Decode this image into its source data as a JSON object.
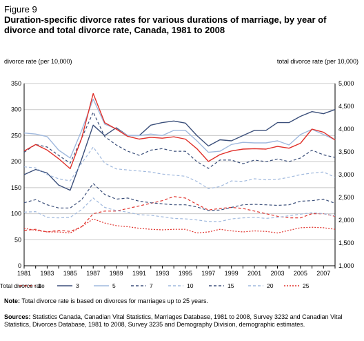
{
  "figure_label": "Figure 9",
  "title": "Duration-specific divorce rates for various durations of marriage, by year of divorce and total divorce rate, Canada, 1981 to 2008",
  "left_axis_title": "divorce rate (per 10,000)",
  "right_axis_title": "total divorce rate (per 10,000)",
  "note_label": "Note:",
  "note_text": "Total divorce rate is based on divorces for marriages up to 25 years.",
  "sources_label": "Sources:",
  "sources_text": "Statistics Canada, Canadian Vital Statistics, Marriages Database, 1981 to 2008, Survey 3232 and Canadian Vital Statistics, Divorces Database, 1981 to 2008, Survey 3235 and Demography Division, demographic estimates.",
  "chart_data": {
    "type": "line",
    "x": [
      1981,
      1982,
      1983,
      1984,
      1985,
      1986,
      1987,
      1988,
      1989,
      1990,
      1991,
      1992,
      1993,
      1994,
      1995,
      1996,
      1997,
      1998,
      1999,
      2000,
      2001,
      2002,
      2003,
      2004,
      2005,
      2006,
      2007,
      2008
    ],
    "x_ticks": [
      "1981",
      "1983",
      "1985",
      "1987",
      "1989",
      "1991",
      "1993",
      "1995",
      "1997",
      "1999",
      "2001",
      "2003",
      "2005",
      "2007"
    ],
    "y_left_lim": [
      0,
      350
    ],
    "y_left_ticks": [
      "0",
      "50",
      "100",
      "150",
      "200",
      "250",
      "300",
      "350"
    ],
    "y_right_lim": [
      1000,
      5000
    ],
    "y_right_ticks": [
      "1,000",
      "1,500",
      "2,000",
      "2,500",
      "3,000",
      "3,500",
      "4,000",
      "4,500",
      "5,000"
    ],
    "grid": "horizontal",
    "legend_position": "bottom",
    "series": [
      {
        "name": "1",
        "axis": "left",
        "color": "#e0302a",
        "style": "dashed",
        "values": [
          68,
          70,
          65,
          68,
          66,
          75,
          100,
          105,
          105,
          110,
          115,
          120,
          125,
          133,
          130,
          118,
          107,
          110,
          112,
          110,
          105,
          100,
          95,
          92,
          92,
          100,
          100,
          95
        ]
      },
      {
        "name": "3",
        "axis": "left",
        "color": "#3b4f7a",
        "style": "solid",
        "values": [
          175,
          185,
          178,
          155,
          145,
          205,
          270,
          250,
          265,
          250,
          250,
          270,
          275,
          278,
          274,
          250,
          230,
          242,
          240,
          250,
          260,
          260,
          275,
          275,
          287,
          296,
          292,
          300
        ]
      },
      {
        "name": "5",
        "axis": "left",
        "color": "#9fb8dd",
        "style": "solid",
        "values": [
          255,
          253,
          248,
          222,
          207,
          260,
          320,
          272,
          263,
          250,
          250,
          253,
          250,
          260,
          260,
          240,
          218,
          220,
          233,
          237,
          236,
          236,
          240,
          232,
          252,
          262,
          252,
          242
        ]
      },
      {
        "name": "7",
        "axis": "left",
        "color": "#3b4f7a",
        "style": "dashed",
        "values": [
          218,
          233,
          228,
          212,
          197,
          245,
          295,
          248,
          232,
          220,
          212,
          222,
          225,
          220,
          220,
          200,
          187,
          203,
          203,
          196,
          203,
          200,
          205,
          200,
          207,
          222,
          213,
          208
        ]
      },
      {
        "name": "10",
        "axis": "left",
        "color": "#9fb8dd",
        "style": "dashed",
        "values": [
          190,
          188,
          175,
          167,
          163,
          197,
          228,
          197,
          186,
          184,
          182,
          180,
          176,
          174,
          172,
          162,
          148,
          152,
          163,
          162,
          167,
          165,
          166,
          170,
          175,
          178,
          180,
          170
        ]
      },
      {
        "name": "15",
        "axis": "left",
        "color": "#3b4f7a",
        "style": "dashed",
        "values": [
          121,
          127,
          117,
          111,
          111,
          127,
          158,
          137,
          128,
          130,
          124,
          121,
          119,
          117,
          117,
          113,
          106,
          107,
          112,
          117,
          118,
          117,
          116,
          117,
          124,
          125,
          128,
          120
        ]
      },
      {
        "name": "20",
        "axis": "left",
        "color": "#9fb8dd",
        "style": "dashed",
        "values": [
          103,
          104,
          93,
          92,
          93,
          108,
          130,
          112,
          106,
          103,
          98,
          97,
          94,
          91,
          90,
          88,
          85,
          85,
          90,
          92,
          93,
          91,
          93,
          96,
          99,
          102,
          100,
          96
        ]
      },
      {
        "name": "25",
        "axis": "left",
        "color": "#e0302a",
        "style": "dotted",
        "values": [
          72,
          68,
          65,
          65,
          63,
          75,
          90,
          82,
          77,
          75,
          72,
          70,
          69,
          70,
          70,
          63,
          65,
          70,
          67,
          65,
          67,
          66,
          63,
          68,
          73,
          74,
          73,
          70
        ]
      },
      {
        "name": "Total divorce rate",
        "axis": "right",
        "color": "#e0302a",
        "style": "solid",
        "values": [
          3520,
          3660,
          3540,
          3350,
          3130,
          3800,
          4780,
          4140,
          4000,
          3840,
          3780,
          3820,
          3800,
          3830,
          3780,
          3570,
          3290,
          3440,
          3520,
          3560,
          3570,
          3560,
          3620,
          3580,
          3690,
          4000,
          3930,
          3760
        ]
      }
    ]
  }
}
